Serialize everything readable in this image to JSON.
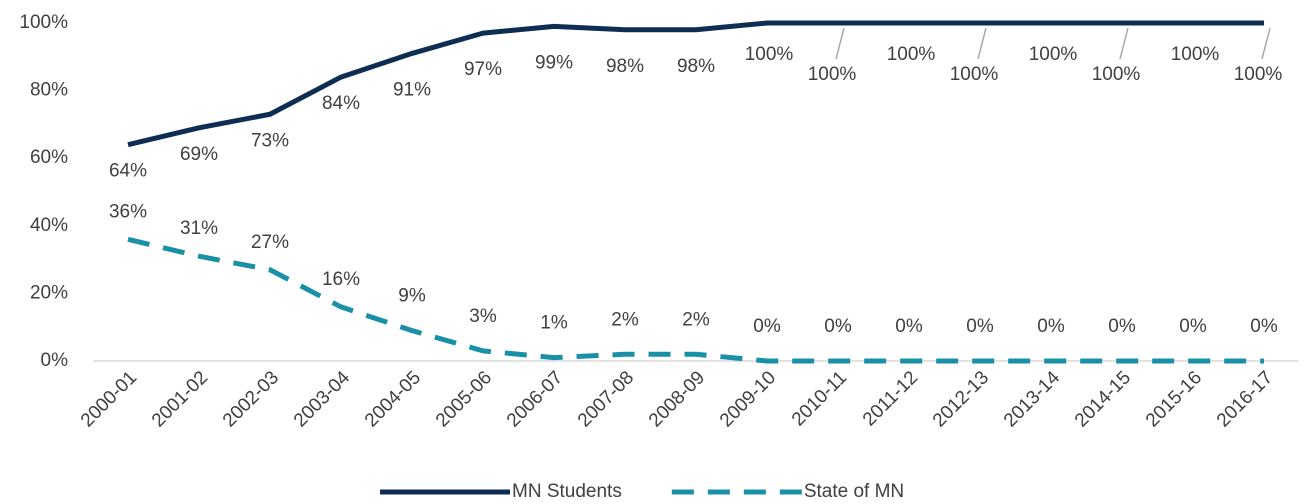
{
  "chart_data": {
    "type": "line",
    "categories": [
      "2000-01",
      "2001-02",
      "2002-03",
      "2003-04",
      "2004-05",
      "2005-06",
      "2006-07",
      "2007-08",
      "2008-09",
      "2009-10",
      "2010-11",
      "2011-12",
      "2012-13",
      "2013-14",
      "2014-15",
      "2015-16",
      "2016-17"
    ],
    "series": [
      {
        "name": "MN Students",
        "color": "#0e2d52",
        "dash": false,
        "values": [
          64,
          69,
          73,
          84,
          91,
          97,
          99,
          98,
          98,
          100,
          100,
          100,
          100,
          100,
          100,
          100,
          100
        ],
        "value_labels": [
          "64%",
          "69%",
          "73%",
          "84%",
          "91%",
          "97%",
          "99%",
          "98%",
          "98%",
          "100%",
          "100%",
          "100%",
          "100%",
          "100%",
          "100%",
          "100%",
          "100%"
        ]
      },
      {
        "name": "State of MN",
        "color": "#1a8fa8",
        "dash": true,
        "values": [
          36,
          31,
          27,
          16,
          9,
          3,
          1,
          2,
          2,
          0,
          0,
          0,
          0,
          0,
          0,
          0,
          0
        ],
        "value_labels": [
          "36%",
          "31%",
          "27%",
          "16%",
          "9%",
          "3%",
          "1%",
          "2%",
          "2%",
          "0%",
          "0%",
          "0%",
          "0%",
          "0%",
          "0%",
          "0%",
          "0%"
        ]
      }
    ],
    "ylim": [
      0,
      100
    ],
    "yticks": [
      {
        "value": 0,
        "label": "0%"
      },
      {
        "value": 20,
        "label": "20%"
      },
      {
        "value": 40,
        "label": "40%"
      },
      {
        "value": 60,
        "label": "60%"
      },
      {
        "value": 80,
        "label": "80%"
      },
      {
        "value": 100,
        "label": "100%"
      }
    ],
    "grid": false,
    "legend": "bottom"
  }
}
